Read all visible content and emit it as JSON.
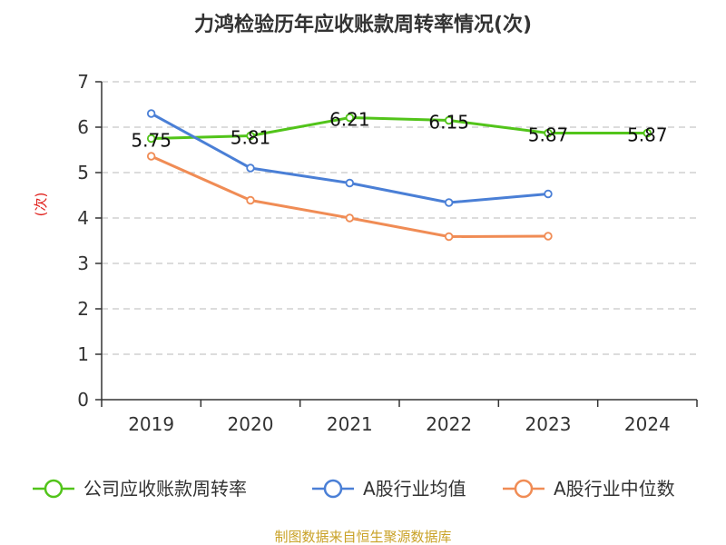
{
  "chart_data": {
    "type": "line",
    "title": "力鸿检验历年应收账款周转率情况(次)",
    "ylabel": "(次)",
    "xlabel": "",
    "categories": [
      "2019",
      "2020",
      "2021",
      "2022",
      "2023",
      "2024"
    ],
    "ylim": [
      0,
      7
    ],
    "yticks": [
      0,
      1,
      2,
      3,
      4,
      5,
      6,
      7
    ],
    "grid": true,
    "legend": "bottom",
    "series": [
      {
        "name": "公司应收账款周转率",
        "color": "#52c41a",
        "values": [
          5.75,
          5.81,
          6.21,
          6.15,
          5.87,
          5.87
        ],
        "labels": [
          "5.75",
          "5.81",
          "6.21",
          "6.15",
          "5.87",
          "5.87"
        ]
      },
      {
        "name": "A股行业均值",
        "color": "#4a7fd6",
        "values": [
          6.3,
          5.1,
          4.77,
          4.34,
          4.53,
          null
        ]
      },
      {
        "name": "A股行业中位数",
        "color": "#f08c55",
        "values": [
          5.36,
          4.39,
          4.0,
          3.59,
          3.6,
          null
        ]
      }
    ],
    "source": "制图数据来自恒生聚源数据库"
  }
}
